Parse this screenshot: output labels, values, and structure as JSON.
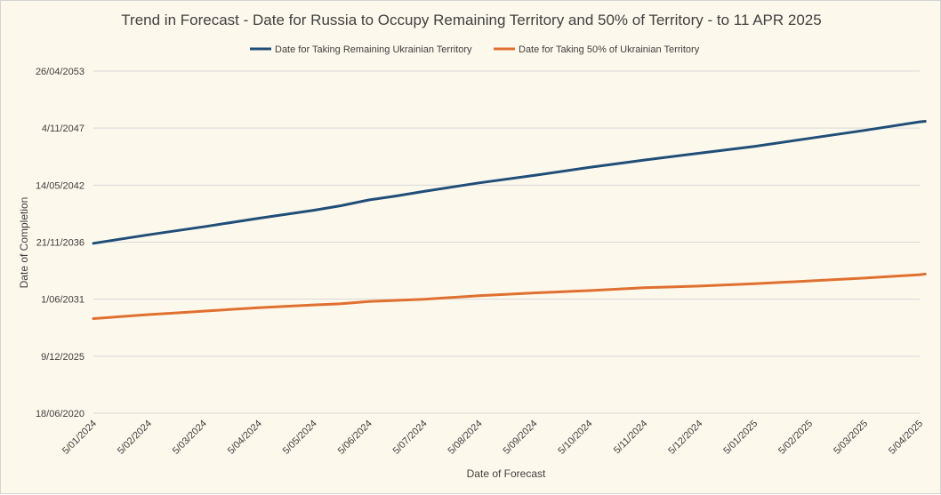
{
  "chart_data": {
    "type": "line",
    "title": "Trend in Forecast - Date for Russia to Occupy Remaining Territory and 50% of Territory - to 11 APR 2025",
    "xlabel": "Date of Forecast",
    "ylabel": "Date of Completion",
    "x_tick_labels": [
      "5/01/2024",
      "5/02/2024",
      "5/03/2024",
      "5/04/2024",
      "5/05/2024",
      "5/06/2024",
      "5/07/2024",
      "5/08/2024",
      "5/09/2024",
      "5/10/2024",
      "5/11/2024",
      "5/12/2024",
      "5/01/2025",
      "5/02/2025",
      "5/03/2025",
      "5/04/2025"
    ],
    "y_tick_labels": [
      "18/06/2020",
      "9/12/2025",
      "1/06/2031",
      "21/11/2036",
      "14/05/2042",
      "4/11/2047",
      "26/04/2053"
    ],
    "ylim_index": [
      0,
      6
    ],
    "series": [
      {
        "name": "Date for Taking Remaining Ukrainian Territory",
        "color": "#1f4e79",
        "points": [
          [
            0,
            2.98
          ],
          [
            1,
            3.13
          ],
          [
            1.5,
            3.2
          ],
          [
            2,
            3.27
          ],
          [
            3,
            3.42
          ],
          [
            4,
            3.56
          ],
          [
            4.5,
            3.64
          ],
          [
            5,
            3.74
          ],
          [
            5.5,
            3.81
          ],
          [
            6,
            3.89
          ],
          [
            7,
            4.04
          ],
          [
            8,
            4.17
          ],
          [
            9,
            4.31
          ],
          [
            10,
            4.44
          ],
          [
            11,
            4.56
          ],
          [
            12,
            4.68
          ],
          [
            13,
            4.82
          ],
          [
            14,
            4.96
          ],
          [
            15,
            5.11
          ],
          [
            15.1,
            5.12
          ]
        ]
      },
      {
        "name": "Date for Taking 50% of Ukrainian Territory",
        "color": "#e07030",
        "points": [
          [
            0,
            1.66
          ],
          [
            1,
            1.73
          ],
          [
            1.5,
            1.76
          ],
          [
            2,
            1.79
          ],
          [
            3,
            1.85
          ],
          [
            4,
            1.9
          ],
          [
            4.5,
            1.92
          ],
          [
            5,
            1.96
          ],
          [
            6,
            2.0
          ],
          [
            7,
            2.06
          ],
          [
            8,
            2.11
          ],
          [
            9,
            2.15
          ],
          [
            10,
            2.2
          ],
          [
            11,
            2.23
          ],
          [
            12,
            2.27
          ],
          [
            13,
            2.32
          ],
          [
            14,
            2.37
          ],
          [
            15,
            2.43
          ],
          [
            15.1,
            2.44
          ]
        ]
      }
    ]
  }
}
